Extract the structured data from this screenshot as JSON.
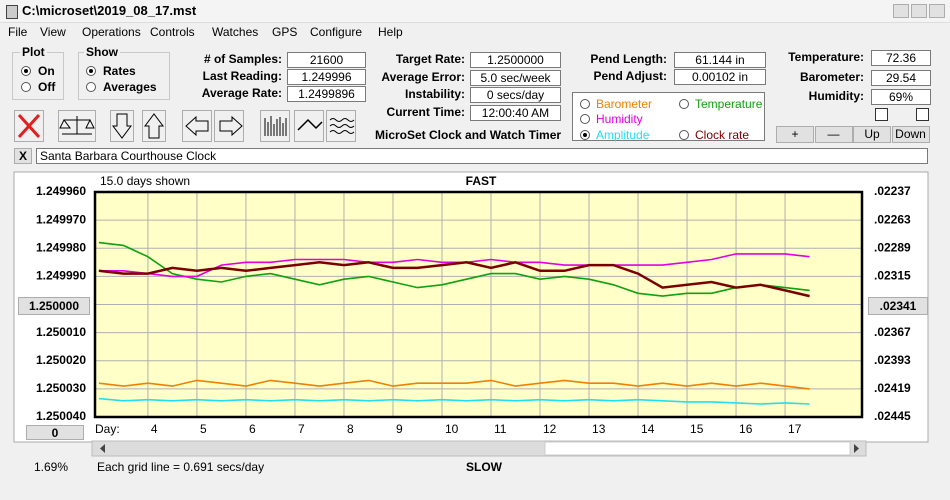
{
  "window": {
    "title": "C:\\microset\\2019_08_17.mst"
  },
  "menu": [
    "File",
    "View",
    "Operations",
    "Controls",
    "Watches",
    "GPS",
    "Configure",
    "Help"
  ],
  "plot": {
    "label": "Plot",
    "options": [
      "On",
      "Off"
    ]
  },
  "show": {
    "label": "Show",
    "options": [
      "Rates",
      "Averages"
    ]
  },
  "stats": [
    {
      "label": "# of Samples:",
      "value": "21600"
    },
    {
      "label": "Last Reading:",
      "value": "1.249996"
    },
    {
      "label": "Average Rate:",
      "value": "1.2499896"
    }
  ],
  "rates": [
    {
      "label": "Target Rate:",
      "value": "1.2500000"
    },
    {
      "label": "Average Error:",
      "value": "5.0 sec/week"
    },
    {
      "label": "Instability:",
      "value": "0 secs/day"
    },
    {
      "label": "Current Time:",
      "value": "12:00:40 AM"
    }
  ],
  "subtitle": "MicroSet Clock and Watch Timer",
  "pendulum": [
    {
      "label": "Pend Length:",
      "value": "61.144 in"
    },
    {
      "label": "Pend Adjust:",
      "value": "0.00102 in"
    }
  ],
  "environment": [
    {
      "label": "Temperature:",
      "value": "72.36"
    },
    {
      "label": "Barometer:",
      "value": "29.54"
    },
    {
      "label": "Humidity:",
      "value": "69%"
    }
  ],
  "buttons": [
    "+",
    "—",
    "Up",
    "Down"
  ],
  "close_button": "X",
  "clock_name": "Santa Barbara Courthouse Clock",
  "chart_data": {
    "type": "line",
    "top_label": "FAST",
    "bottom_label": "SLOW",
    "days_shown": "15.0 days shown",
    "x_label": "Day:",
    "grid_note": "Each grid line = 0.691 secs/day",
    "left_readout": "1.250000",
    "right_readout": ".02341",
    "scroll_readout": "0",
    "percent": "1.69%",
    "xlim": [
      2.92,
      18.57
    ],
    "xticks": [
      4,
      5,
      6,
      7,
      8,
      9,
      10,
      11,
      12,
      13,
      14,
      15,
      16,
      17
    ],
    "ylim": [
      1.24996,
      1.25004
    ],
    "y_inverted": true,
    "yticks": [
      {
        "value": 1.24996,
        "label": "1.249960"
      },
      {
        "value": 1.24997,
        "label": "1.249970"
      },
      {
        "value": 1.24998,
        "label": "1.249980"
      },
      {
        "value": 1.24999,
        "label": "1.249990"
      },
      {
        "value": 1.25,
        "label": "1.250000"
      },
      {
        "value": 1.25001,
        "label": "1.250010"
      },
      {
        "value": 1.25002,
        "label": "1.250020"
      },
      {
        "value": 1.25003,
        "label": "1.250030"
      },
      {
        "value": 1.25004,
        "label": "1.250040"
      }
    ],
    "y2lim": [
      0.02237,
      0.02445
    ],
    "y2ticks": [
      {
        "value": 0.02237,
        "label": ".02237"
      },
      {
        "value": 0.02263,
        "label": ".02263"
      },
      {
        "value": 0.02289,
        "label": ".02289"
      },
      {
        "value": 0.02315,
        "label": ".02315"
      },
      {
        "value": 0.02341,
        "label": ".02341"
      },
      {
        "value": 0.02367,
        "label": ".02367"
      },
      {
        "value": 0.02393,
        "label": ".02393"
      },
      {
        "value": 0.02419,
        "label": ".02419"
      },
      {
        "value": 0.02445,
        "label": ".02445"
      }
    ],
    "grid": true,
    "x": [
      3,
      3.5,
      4,
      4.5,
      5,
      5.5,
      6,
      6.5,
      7,
      7.5,
      8,
      8.5,
      9,
      9.5,
      10,
      10.5,
      11,
      11.5,
      12,
      12.5,
      13,
      13.5,
      14,
      14.5,
      15,
      15.5,
      16,
      16.5,
      17,
      17.5
    ],
    "series": [
      {
        "name": "Barometer",
        "color": "#f08000",
        "values": [
          1.250028,
          1.250029,
          1.250028,
          1.250029,
          1.250027,
          1.250028,
          1.250029,
          1.250027,
          1.250028,
          1.250029,
          1.250028,
          1.250027,
          1.250029,
          1.250028,
          1.250028,
          1.250028,
          1.250027,
          1.250029,
          1.250028,
          1.250027,
          1.250028,
          1.250028,
          1.250029,
          1.250028,
          1.250029,
          1.250028,
          1.250029,
          1.250028,
          1.250029,
          1.25003
        ]
      },
      {
        "name": "Temperature",
        "color": "#10a010",
        "values": [
          1.249978,
          1.249979,
          1.249983,
          1.249989,
          1.249991,
          1.249992,
          1.24999,
          1.249989,
          1.249991,
          1.249993,
          1.249991,
          1.24999,
          1.249992,
          1.249994,
          1.249993,
          1.249991,
          1.249989,
          1.249989,
          1.249991,
          1.24999,
          1.249991,
          1.249993,
          1.249996,
          1.249997,
          1.249996,
          1.249996,
          1.249994,
          1.249993,
          1.249994,
          1.249995
        ]
      },
      {
        "name": "Humidity",
        "color": "#e000e0",
        "values": [
          1.249988,
          1.249988,
          1.249989,
          1.24999,
          1.24999,
          1.249986,
          1.249985,
          1.249985,
          1.249984,
          1.249984,
          1.249984,
          1.249985,
          1.249985,
          1.249984,
          1.249985,
          1.249985,
          1.249984,
          1.249985,
          1.249985,
          1.249986,
          1.249986,
          1.249986,
          1.249986,
          1.249986,
          1.249985,
          1.249984,
          1.249982,
          1.249982,
          1.249982,
          1.249983
        ]
      },
      {
        "name": "Amplitude",
        "color": "#20e0f0",
        "axis": "y2",
        "values": [
          0.02428,
          0.0243,
          0.02429,
          0.0243,
          0.02429,
          0.0243,
          0.02429,
          0.0243,
          0.02429,
          0.0243,
          0.02429,
          0.0243,
          0.02429,
          0.0243,
          0.02429,
          0.0243,
          0.02429,
          0.0243,
          0.02429,
          0.0243,
          0.02429,
          0.0243,
          0.02429,
          0.0243,
          0.02431,
          0.02431,
          0.02432,
          0.02433,
          0.02432,
          0.02433
        ]
      },
      {
        "name": "Clock rate",
        "color": "#7a0000",
        "values": [
          1.249988,
          1.249989,
          1.249989,
          1.249987,
          1.249988,
          1.249987,
          1.249988,
          1.249987,
          1.249986,
          1.249985,
          1.249986,
          1.249985,
          1.249987,
          1.249987,
          1.249986,
          1.249985,
          1.249987,
          1.249985,
          1.249988,
          1.249988,
          1.249986,
          1.249986,
          1.249989,
          1.249994,
          1.249993,
          1.249992,
          1.249994,
          1.249993,
          1.249995,
          1.249997
        ]
      }
    ]
  }
}
